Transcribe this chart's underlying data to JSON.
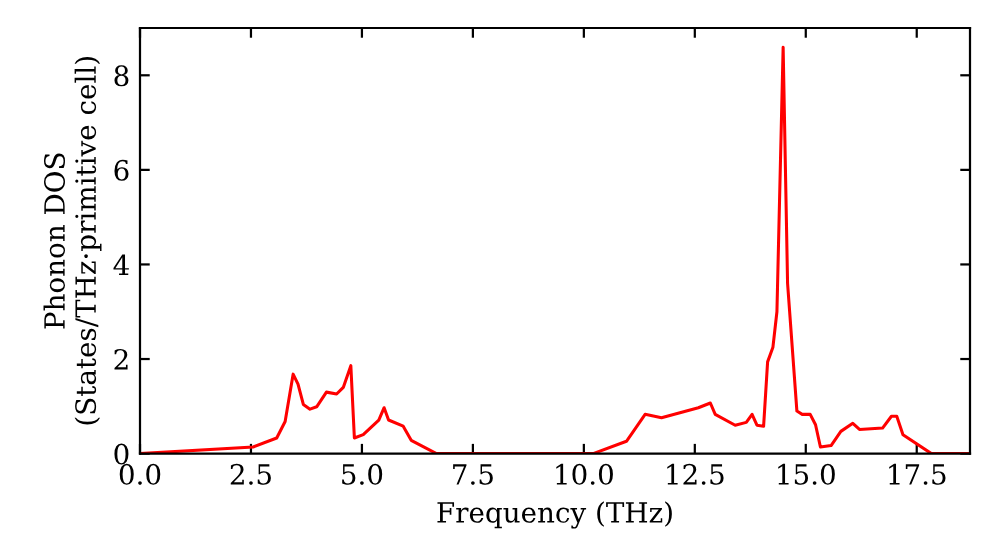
{
  "chart_data": {
    "type": "line",
    "xlabel": "Frequency (THz)",
    "ylabel": "Phonon DOS\n(States/THz·primitive cell)",
    "xlim": [
      0,
      18.7
    ],
    "ylim": [
      0,
      9
    ],
    "xticks": [
      {
        "value": 0,
        "label": "0.0"
      },
      {
        "value": 2.5,
        "label": "2.5"
      },
      {
        "value": 5,
        "label": "5.0"
      },
      {
        "value": 7.5,
        "label": "7.5"
      },
      {
        "value": 10,
        "label": "10.0"
      },
      {
        "value": 12.5,
        "label": "12.5"
      },
      {
        "value": 15,
        "label": "15.0"
      },
      {
        "value": 17.5,
        "label": "17.5"
      }
    ],
    "yticks": [
      0,
      2,
      4,
      6,
      8
    ],
    "grid": false,
    "marker": "none",
    "line_style": "solid",
    "series": [
      {
        "color": "#ff0000",
        "x": [
          0,
          2.55,
          3.08,
          3.27,
          3.45,
          3.56,
          3.68,
          3.83,
          3.98,
          4.2,
          4.43,
          4.58,
          4.75,
          4.83,
          5.03,
          5.38,
          5.5,
          5.6,
          5.93,
          6.11,
          6.68,
          10.21,
          10.96,
          11.38,
          11.75,
          12.58,
          12.85,
          12.96,
          13.41,
          13.66,
          13.79,
          13.9,
          14.05,
          14.14,
          14.26,
          14.35,
          14.49,
          14.59,
          14.8,
          14.92,
          15.1,
          15.22,
          15.33,
          15.57,
          15.79,
          16.06,
          16.21,
          16.73,
          16.93,
          17.05,
          17.19,
          17.83,
          18.7
        ],
        "values": [
          0,
          0.14,
          0.33,
          0.68,
          1.68,
          1.47,
          1.04,
          0.94,
          0.99,
          1.3,
          1.26,
          1.4,
          1.86,
          0.33,
          0.4,
          0.71,
          0.97,
          0.71,
          0.58,
          0.28,
          0,
          0,
          0.26,
          0.83,
          0.76,
          0.97,
          1.07,
          0.83,
          0.6,
          0.66,
          0.83,
          0.6,
          0.58,
          1.94,
          2.25,
          3.0,
          8.59,
          3.6,
          0.9,
          0.83,
          0.83,
          0.61,
          0.14,
          0.17,
          0.47,
          0.64,
          0.51,
          0.54,
          0.79,
          0.79,
          0.4,
          0,
          0
        ]
      }
    ]
  }
}
